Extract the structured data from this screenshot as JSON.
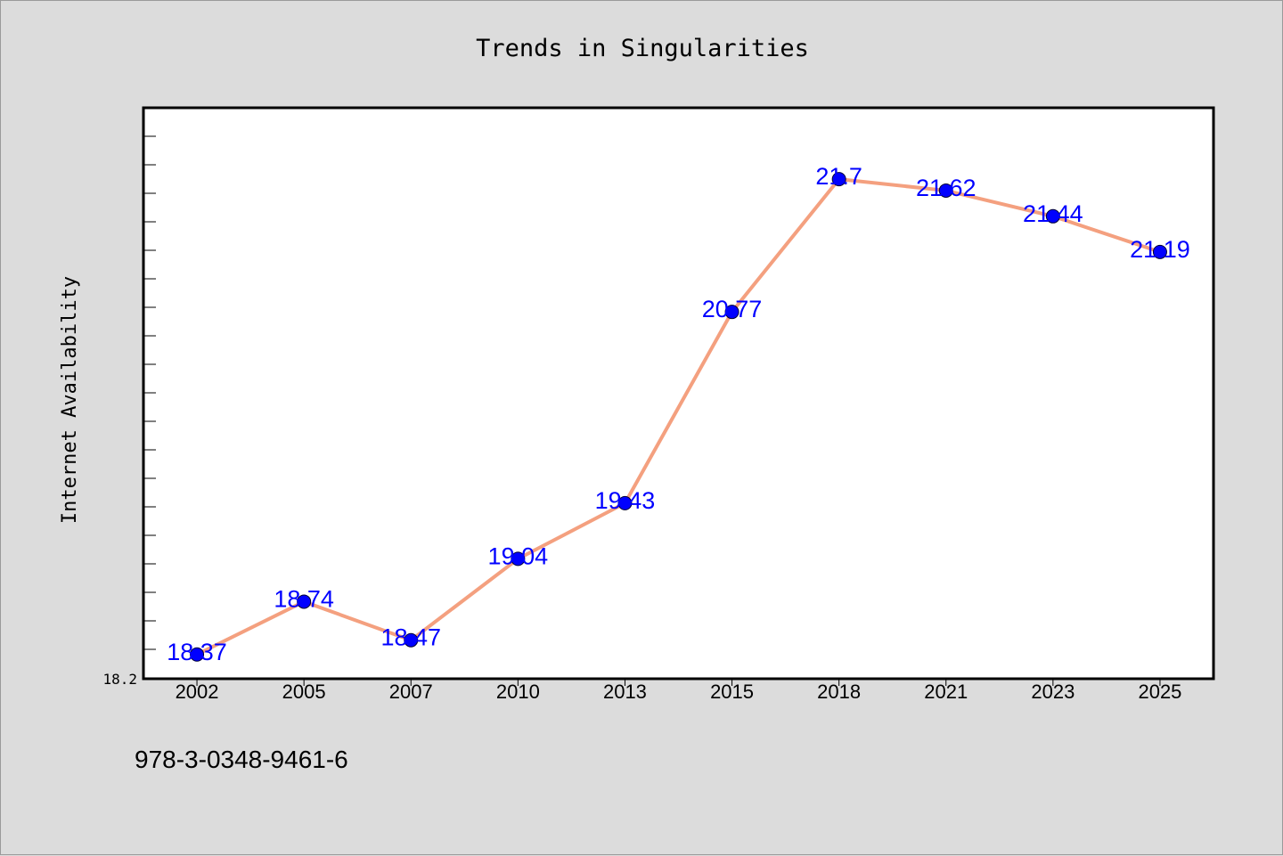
{
  "chart_data": {
    "type": "line",
    "title": "Trends in Singularities",
    "xlabel": "",
    "ylabel": "Internet Availability",
    "categories": [
      "2002",
      "2005",
      "2007",
      "2010",
      "2013",
      "2015",
      "2018",
      "2021",
      "2023",
      "2025"
    ],
    "series": [
      {
        "values": [
          18.37,
          18.74,
          18.47,
          19.04,
          19.43,
          20.77,
          21.7,
          21.62,
          21.44,
          21.19
        ]
      }
    ],
    "data_labels": [
      "18.37",
      "18.74",
      "18.47",
      "19.04",
      "19.43",
      "20.77",
      "21.7",
      "21.62",
      "21.44",
      "21.19"
    ],
    "ylim": [
      18.2,
      22.2
    ],
    "y_tick_labels": [
      "18.2"
    ],
    "grid": false,
    "legend": "none",
    "colors": {
      "line": "#f4a07f",
      "marker": "#0000ff",
      "label": "#0000ff"
    }
  },
  "footer": {
    "code": "978-3-0348-9461-6"
  }
}
